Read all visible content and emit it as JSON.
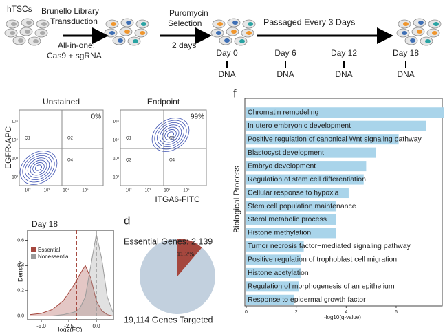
{
  "workflow": {
    "start": "hTSCs",
    "step1": [
      "Brunello Library",
      "Transduction"
    ],
    "step1_note": [
      "All-in-one:",
      "Cas9 + sgRNA"
    ],
    "step2": [
      "Puromycin",
      "Selection"
    ],
    "step2_note": "2 days",
    "step3": "Passaged Every 3 Days",
    "timepoints": [
      "Day 0",
      "Day 6",
      "Day 12",
      "Day 18"
    ],
    "sample": "DNA"
  },
  "flow": {
    "y_label": "EGFR-APC",
    "x_label": "ITGA6-FITC",
    "plots": [
      {
        "title": "Unstained",
        "percent": "0%"
      },
      {
        "title": "Endpoint",
        "percent": "99%"
      }
    ],
    "quadrants": [
      "Q1",
      "Q2",
      "Q3",
      "Q4"
    ],
    "ticks": [
      "10²",
      "10³",
      "10⁴",
      "10⁵"
    ]
  },
  "chart_data": [
    {
      "type": "density",
      "title": "Day 18",
      "xlabel": "log2(FC)",
      "ylabel": "Density",
      "series": [
        {
          "name": "Essential",
          "color": "#a5473e",
          "x": [
            -6,
            -5,
            -4,
            -3,
            -2,
            -1.5,
            -1,
            -0.5,
            0,
            0.5,
            1,
            1.5
          ],
          "values": [
            0.01,
            0.02,
            0.05,
            0.12,
            0.25,
            0.33,
            0.4,
            0.3,
            0.12,
            0.04,
            0.01,
            0.0
          ]
        },
        {
          "name": "Nonessential",
          "color": "#9a9a9a",
          "x": [
            -6,
            -4,
            -3,
            -2,
            -1.5,
            -1,
            -0.5,
            0,
            0.5,
            1,
            1.5
          ],
          "values": [
            0.0,
            0.0,
            0.01,
            0.03,
            0.06,
            0.15,
            0.4,
            0.65,
            0.45,
            0.15,
            0.03
          ]
        }
      ],
      "vlines": [
        {
          "x": -1.8,
          "color": "#a5473e"
        },
        {
          "x": 0,
          "color": "#9a9a9a"
        }
      ],
      "xlim": [
        -6.25,
        1.56
      ],
      "xticks": [
        {
          "value": -5,
          "label": "-5.0"
        },
        {
          "value": -2.5,
          "label": "-2.5"
        },
        {
          "value": 0,
          "label": "0.0"
        }
      ],
      "ylim": [
        -0.03,
        0.68
      ],
      "yticks": [
        {
          "value": 0,
          "label": "0.0"
        },
        {
          "value": 0.2,
          "label": "0.2"
        },
        {
          "value": 0.4,
          "label": "0.4"
        },
        {
          "value": 0.6,
          "label": "0.6"
        }
      ]
    },
    {
      "type": "pie",
      "panel": "d",
      "title": "Essential Genes: 2,139",
      "caption": "19,114 Genes Targeted",
      "slices": [
        {
          "value": 11.2,
          "label": "11.2%",
          "color": "#a5473e"
        },
        {
          "value": 88.8,
          "color": "#c2d0de"
        }
      ]
    },
    {
      "type": "barh",
      "panel": "f",
      "ylabel": "Biological Process",
      "xlabel": "-log10(q-value)",
      "color": "#a9d4ea",
      "categories": [
        "Chromatin remodeling",
        "In utero embryonic development",
        "Positive regulation of canonical Wnt signaling pathway",
        "Blastocyst development",
        "Embryo development",
        "Regulation of stem cell differentiation",
        "Cellular response to hypoxia",
        "Stem cell population maintenance",
        "Sterol metabolic process",
        "Histone methylation",
        "Tumor necrosis factor−mediated signaling pathway",
        "Positive regulation of trophoblast cell migration",
        "Histone acetylation",
        "Regulation of morphogenesis of an epithelium",
        "Response to epidermal growth factor"
      ],
      "values": [
        7.9,
        7.2,
        6.1,
        5.2,
        4.8,
        4.7,
        4.1,
        3.6,
        3.6,
        3.6,
        2.3,
        2.2,
        2.2,
        2.1,
        1.9
      ],
      "xlim": [
        0,
        7.9
      ],
      "xticks": [
        0,
        2,
        4,
        6
      ]
    }
  ]
}
